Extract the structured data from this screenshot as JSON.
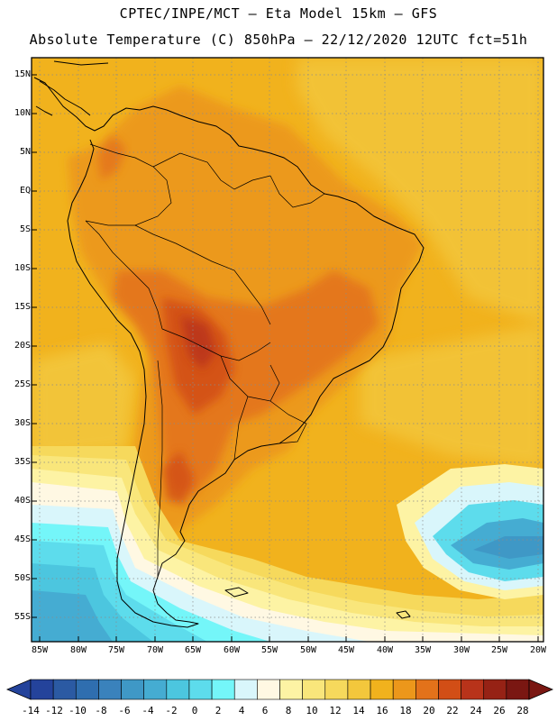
{
  "header": {
    "line1": "CPTEC/INPE/MCT –  Eta Model 15km – GFS",
    "line2": "Absolute Temperature (C) 850hPa – 22/12/2020 12UTC fct=51h"
  },
  "map": {
    "lat_labels": [
      "15N",
      "10N",
      "5N",
      "EQ",
      "5S",
      "10S",
      "15S",
      "20S",
      "25S",
      "30S",
      "35S",
      "40S",
      "45S",
      "50S",
      "55S"
    ],
    "lon_labels": [
      "85W",
      "80W",
      "75W",
      "70W",
      "65W",
      "60W",
      "55W",
      "50W",
      "45W",
      "40W",
      "35W",
      "30W",
      "25W",
      "20W"
    ]
  },
  "colorbar": {
    "labels": [
      "-14",
      "-12",
      "-10",
      "-8",
      "-6",
      "-4",
      "-2",
      "0",
      "2",
      "4",
      "6",
      "8",
      "10",
      "12",
      "14",
      "16",
      "18",
      "20",
      "22",
      "24",
      "26",
      "28"
    ],
    "colors": [
      "#24439b",
      "#2b5aa3",
      "#2f6eaf",
      "#3a82bc",
      "#3f98c6",
      "#45acd2",
      "#4cc6df",
      "#5ddcec",
      "#74f6f9",
      "#d9f6fb",
      "#fff8e3",
      "#fdf3a4",
      "#f9e67b",
      "#f6d95c",
      "#f3c73c",
      "#f1b21d",
      "#ec971b",
      "#e3721a",
      "#d24e16",
      "#b8331a",
      "#962215",
      "#7a1712"
    ],
    "under_color": "#24439b",
    "over_color": "#7a1712"
  }
}
